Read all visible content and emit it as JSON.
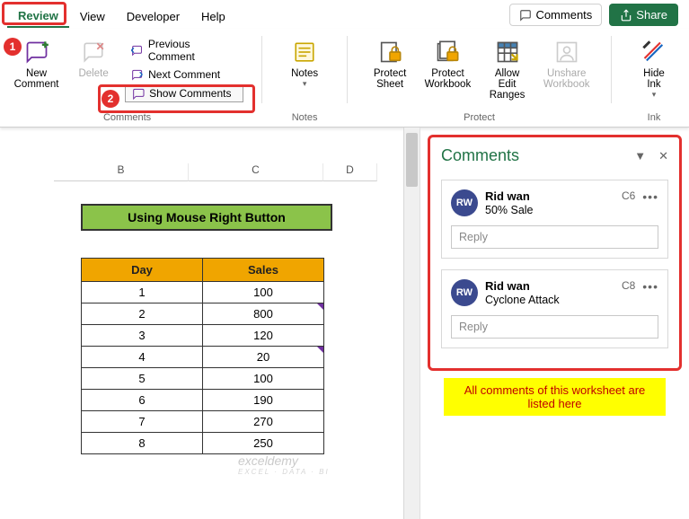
{
  "tabs": {
    "review": "Review",
    "view": "View",
    "developer": "Developer",
    "help": "Help"
  },
  "top_buttons": {
    "comments": "Comments",
    "share": "Share"
  },
  "ribbon": {
    "new_comment": "New\nComment",
    "delete": "Delete",
    "prev": "Previous Comment",
    "next": "Next Comment",
    "show": "Show Comments",
    "notes": "Notes",
    "protect_sheet": "Protect\nSheet",
    "protect_wb": "Protect\nWorkbook",
    "allow_edit": "Allow Edit\nRanges",
    "unshare": "Unshare\nWorkbook",
    "hide_ink": "Hide\nInk",
    "group_comments": "Comments",
    "group_notes": "Notes",
    "group_protect": "Protect",
    "group_ink": "Ink"
  },
  "sheet": {
    "title": "Using Mouse Right Button",
    "col_b": "B",
    "col_c": "C",
    "col_d": "D",
    "headers": {
      "day": "Day",
      "sales": "Sales"
    },
    "rows": [
      {
        "day": "1",
        "sales": "100",
        "mark": false
      },
      {
        "day": "2",
        "sales": "800",
        "mark": true
      },
      {
        "day": "3",
        "sales": "120",
        "mark": false
      },
      {
        "day": "4",
        "sales": "20",
        "mark": true
      },
      {
        "day": "5",
        "sales": "100",
        "mark": false
      },
      {
        "day": "6",
        "sales": "190",
        "mark": false
      },
      {
        "day": "7",
        "sales": "270",
        "mark": false
      },
      {
        "day": "8",
        "sales": "250",
        "mark": false
      }
    ],
    "colors": {
      "title_bg": "#8bc34a",
      "header_bg": "#f0a500",
      "border": "#333"
    }
  },
  "pane": {
    "title": "Comments",
    "comments": [
      {
        "initials": "RW",
        "author": "Rid wan",
        "cell": "C6",
        "text": "50% Sale"
      },
      {
        "initials": "RW",
        "author": "Rid wan",
        "cell": "C8",
        "text": "Cyclone Attack"
      }
    ],
    "reply": "Reply",
    "note": "All comments of this worksheet are listed here"
  },
  "callouts": {
    "one": "1",
    "two": "2"
  },
  "watermark": {
    "main": "exceldemy",
    "sub": "EXCEL · DATA · BI"
  }
}
